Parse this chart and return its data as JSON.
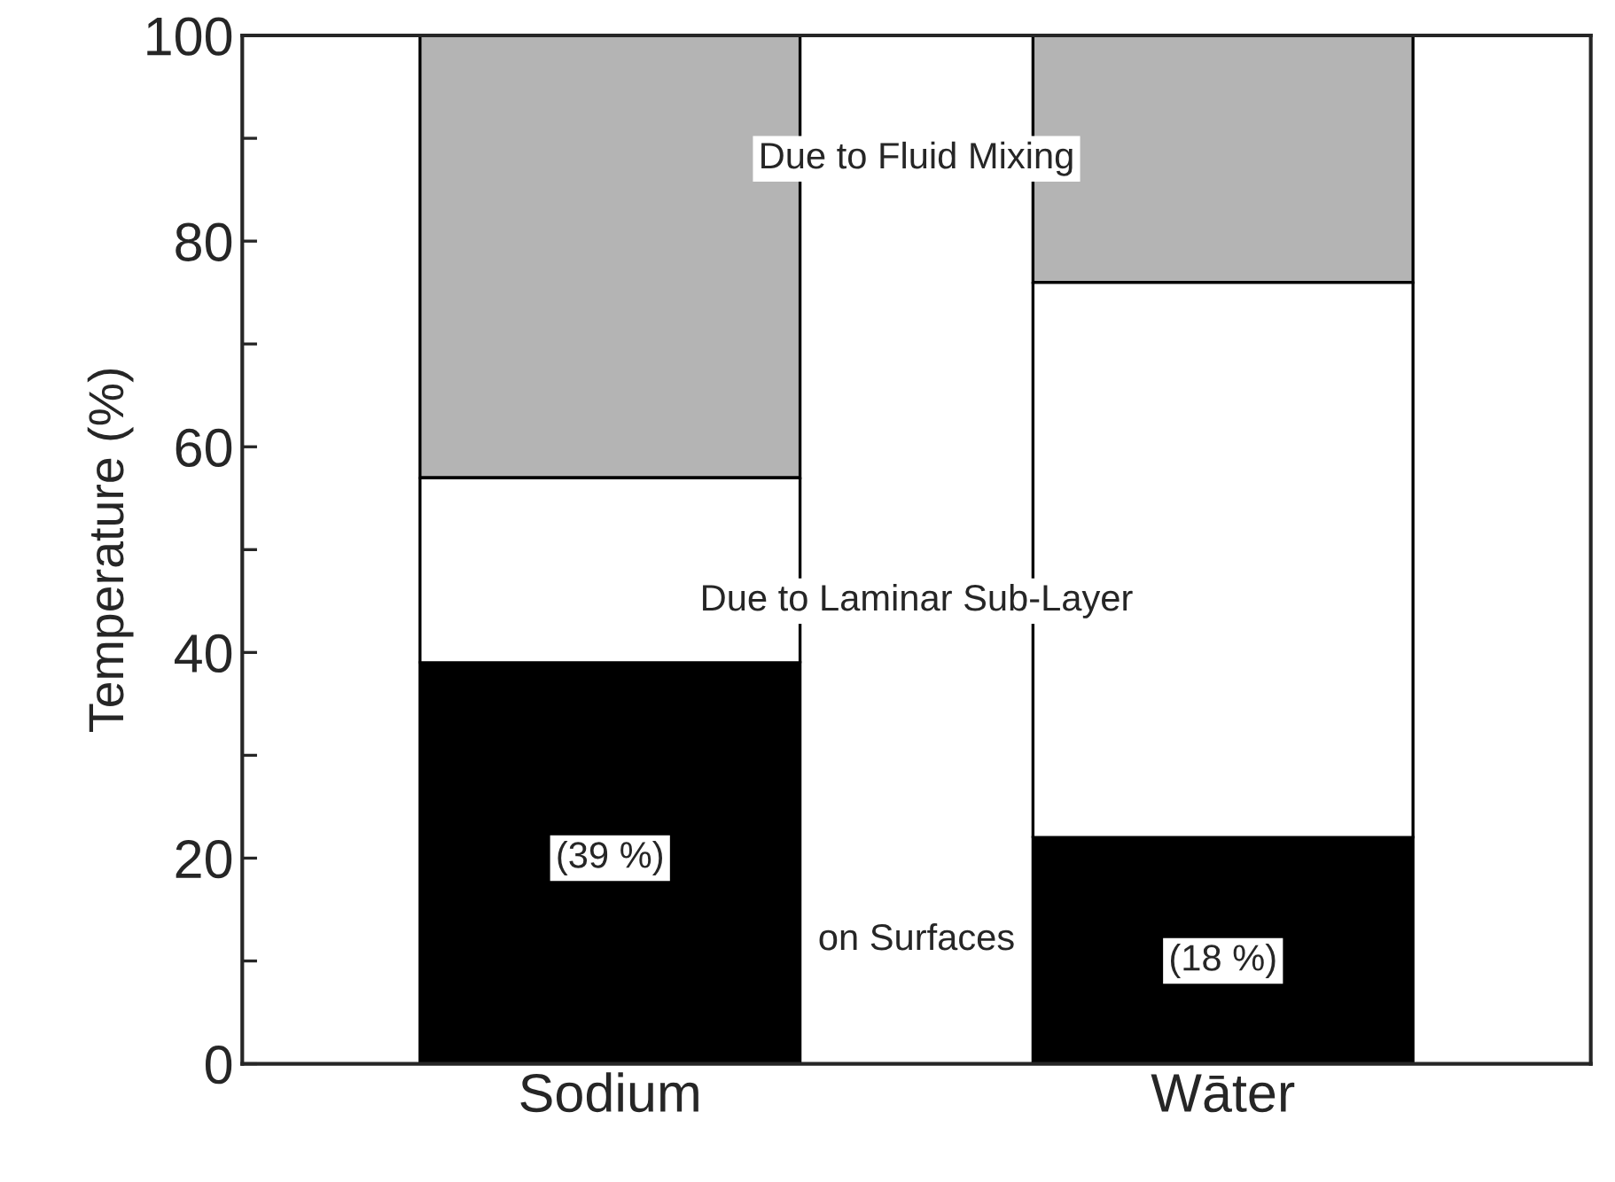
{
  "chart_data": {
    "type": "bar",
    "stacked": true,
    "ylabel": "Temperature (%)",
    "categories": [
      "Sodium",
      "Wāter"
    ],
    "series": [
      {
        "color": "#000000",
        "values": [
          39,
          22
        ]
      },
      {
        "color": "#ffffff",
        "values": [
          18,
          54
        ]
      },
      {
        "color": "#b4b4b4",
        "values": [
          43,
          24
        ]
      }
    ],
    "ylim": [
      0,
      100
    ],
    "yticks": [
      0,
      {
        "value": 10,
        "label": null
      },
      20,
      {
        "value": 30,
        "label": null
      },
      40,
      {
        "value": 50,
        "label": null
      },
      60,
      {
        "value": 70,
        "label": null
      },
      80,
      {
        "value": 90,
        "label": null
      },
      100
    ],
    "grid": false,
    "legend": false,
    "annotations": [
      "Due to Fluid Mixing",
      "Due to Laminar Sub-Layer",
      "on Surfaces",
      "(39 %)",
      "(18 %)"
    ]
  }
}
